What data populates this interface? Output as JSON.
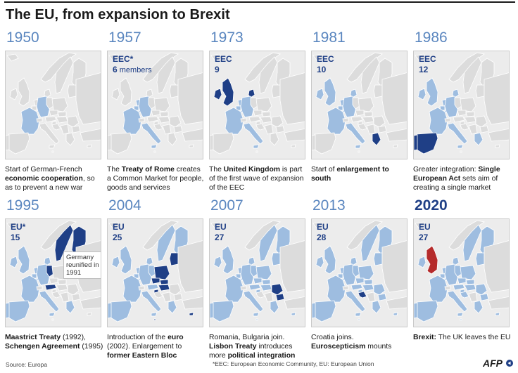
{
  "title": "The EU, from expansion to Brexit",
  "colors": {
    "sea": "#ececec",
    "land": "#dcdcdc",
    "member": "#9ebde0",
    "new_member": "#1f3f86",
    "uk_leaving": "#b52b2b",
    "year": "#5a86bf"
  },
  "panels": [
    {
      "year": "1950",
      "label": "",
      "count": "",
      "count_suffix": "",
      "caption": [
        {
          "t": "Start of German-French ",
          "b": false
        },
        {
          "t": "economic cooperation",
          "b": true
        },
        {
          "t": ", so as to prevent a new war",
          "b": false
        }
      ]
    },
    {
      "year": "1957",
      "label": "EEC*",
      "count": "6",
      "count_suffix": " members",
      "caption": [
        {
          "t": "The ",
          "b": false
        },
        {
          "t": "Treaty of Rome",
          "b": true
        },
        {
          "t": " creates a Common Market for people, goods and services",
          "b": false
        }
      ]
    },
    {
      "year": "1973",
      "label": "EEC",
      "count": "9",
      "count_suffix": "",
      "caption": [
        {
          "t": "The ",
          "b": false
        },
        {
          "t": "United Kingdom",
          "b": true
        },
        {
          "t": " is part of the first wave of expansion of the EEC",
          "b": false
        }
      ]
    },
    {
      "year": "1981",
      "label": "EEC",
      "count": "10",
      "count_suffix": "",
      "caption": [
        {
          "t": "Start of ",
          "b": false
        },
        {
          "t": "enlargement to south",
          "b": true
        }
      ]
    },
    {
      "year": "1986",
      "label": "EEC",
      "count": "12",
      "count_suffix": "",
      "caption": [
        {
          "t": "Greater integration: ",
          "b": false
        },
        {
          "t": "Single European Act",
          "b": true
        },
        {
          "t": " sets aim of creating a single market",
          "b": false
        }
      ]
    },
    {
      "year": "1995",
      "label": "EU*",
      "count": "15",
      "count_suffix": "",
      "note": "Germany reunified in 1991",
      "caption": [
        {
          "t": "Maastrict Treaty",
          "b": true
        },
        {
          "t": " (1992), ",
          "b": false
        },
        {
          "t": "Schengen Agreement",
          "b": true
        },
        {
          "t": " (1995)",
          "b": false
        }
      ]
    },
    {
      "year": "2004",
      "label": "EU",
      "count": "25",
      "count_suffix": "",
      "caption": [
        {
          "t": "Introduction of the ",
          "b": false
        },
        {
          "t": "euro",
          "b": true
        },
        {
          "t": " (2002). Enlargement to ",
          "b": false
        },
        {
          "t": "former Eastern Bloc",
          "b": true
        }
      ]
    },
    {
      "year": "2007",
      "label": "EU",
      "count": "27",
      "count_suffix": "",
      "caption": [
        {
          "t": "Romania, Bulgaria join. ",
          "b": false
        },
        {
          "t": "Lisbon Treaty",
          "b": true
        },
        {
          "t": " introduces more ",
          "b": false
        },
        {
          "t": "political integration",
          "b": true
        }
      ]
    },
    {
      "year": "2013",
      "label": "EU",
      "count": "28",
      "count_suffix": "",
      "caption": [
        {
          "t": "Croatia joins. ",
          "b": false
        },
        {
          "t": "Euroscepticism",
          "b": true
        },
        {
          "t": " mounts",
          "b": false
        }
      ]
    },
    {
      "year": "2020",
      "label": "EU",
      "count": "27",
      "count_suffix": "",
      "caption": [
        {
          "t": "Brexit:",
          "b": true
        },
        {
          "t": " The UK leaves the EU",
          "b": false
        }
      ]
    }
  ],
  "source": "Source: Europa",
  "footnote": "*EEC: European Economic Community, EU: European Union",
  "logo": "AFP"
}
